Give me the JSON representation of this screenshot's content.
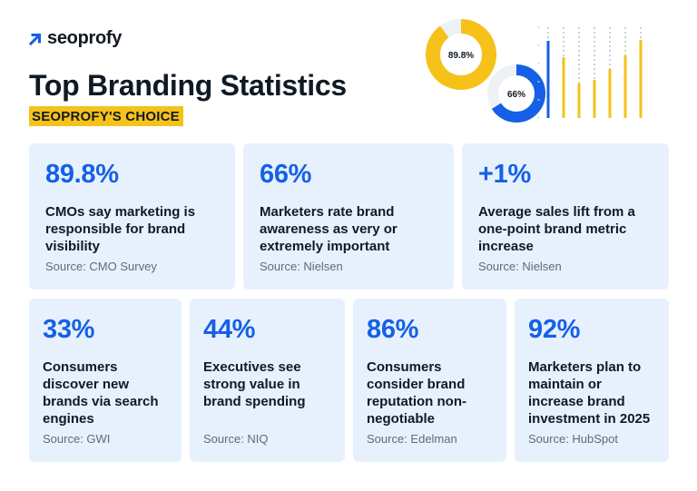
{
  "brand": {
    "logo_text": "seoprofy"
  },
  "header": {
    "title": "Top Branding Statistics",
    "subtitle": "SEOPROFY'S CHOICE"
  },
  "decoration": {
    "donut_1": {
      "label": "89.8%",
      "value": 89.8,
      "color": "#f6c21a"
    },
    "donut_2": {
      "label": "66%",
      "value": 66,
      "color": "#1560e6"
    },
    "bars": {
      "values": [
        0.85,
        0.67,
        0.38,
        0.42,
        0.54,
        0.69,
        0.86
      ],
      "colors": [
        "#1560e6",
        "#f6c21a"
      ]
    }
  },
  "colors": {
    "accent_blue": "#1560e6",
    "accent_yellow": "#f6c21a",
    "card_bg": "#e7f1fd"
  },
  "cards": [
    {
      "stat": "89.8%",
      "desc": "CMOs say marketing is responsible for brand visibility",
      "source": "Source: CMO Survey"
    },
    {
      "stat": "66%",
      "desc": "Marketers rate brand awareness as very or extremely important",
      "source": "Source: Nielsen"
    },
    {
      "stat": "+1%",
      "desc": "Average sales lift from a one-point brand metric increase",
      "source": "Source: Nielsen"
    },
    {
      "stat": "33%",
      "desc": "Consumers discover new brands via search engines",
      "source": "Source: GWI"
    },
    {
      "stat": "44%",
      "desc": "Executives see strong value in brand spending",
      "source": "Source: NIQ"
    },
    {
      "stat": "86%",
      "desc": "Consumers consider brand reputation non-negotiable",
      "source": "Source: Edelman"
    },
    {
      "stat": "92%",
      "desc": "Marketers plan to maintain or increase brand investment in 2025",
      "source": "Source: HubSpot"
    }
  ]
}
